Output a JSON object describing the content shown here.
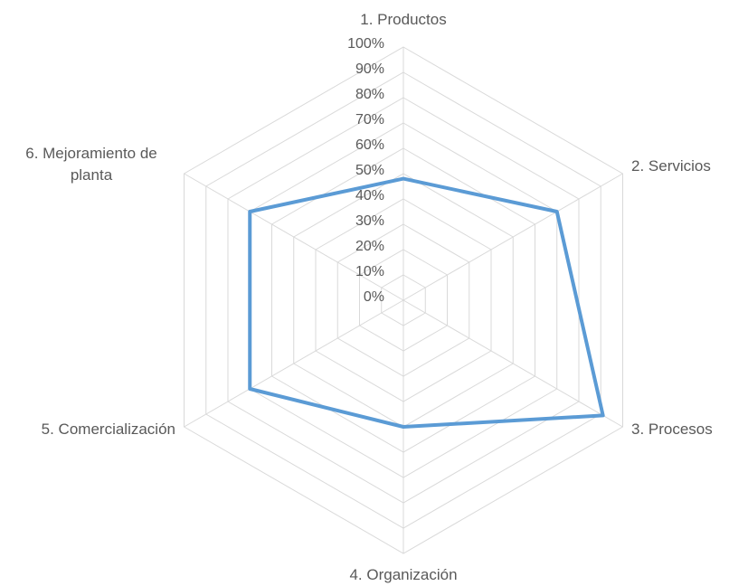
{
  "chart_data": {
    "type": "radar",
    "categories": [
      "1. Productos",
      "2. Servicios",
      "3. Procesos",
      "4. Organización",
      "5. Comercialización",
      "6. Mejoramiento de planta"
    ],
    "values": [
      48,
      70,
      91,
      50,
      70,
      70
    ],
    "color": "#5b9bd5",
    "ylim": [
      0,
      100
    ],
    "yticks": [
      {
        "value": 0,
        "label": "0%"
      },
      {
        "value": 10,
        "label": "10%"
      },
      {
        "value": 20,
        "label": "20%"
      },
      {
        "value": 30,
        "label": "30%"
      },
      {
        "value": 40,
        "label": "40%"
      },
      {
        "value": 50,
        "label": "50%"
      },
      {
        "value": 60,
        "label": "60%"
      },
      {
        "value": 70,
        "label": "70%"
      },
      {
        "value": 80,
        "label": "80%"
      },
      {
        "value": 90,
        "label": "90%"
      },
      {
        "value": 100,
        "label": "100%"
      }
    ],
    "grid": true
  }
}
